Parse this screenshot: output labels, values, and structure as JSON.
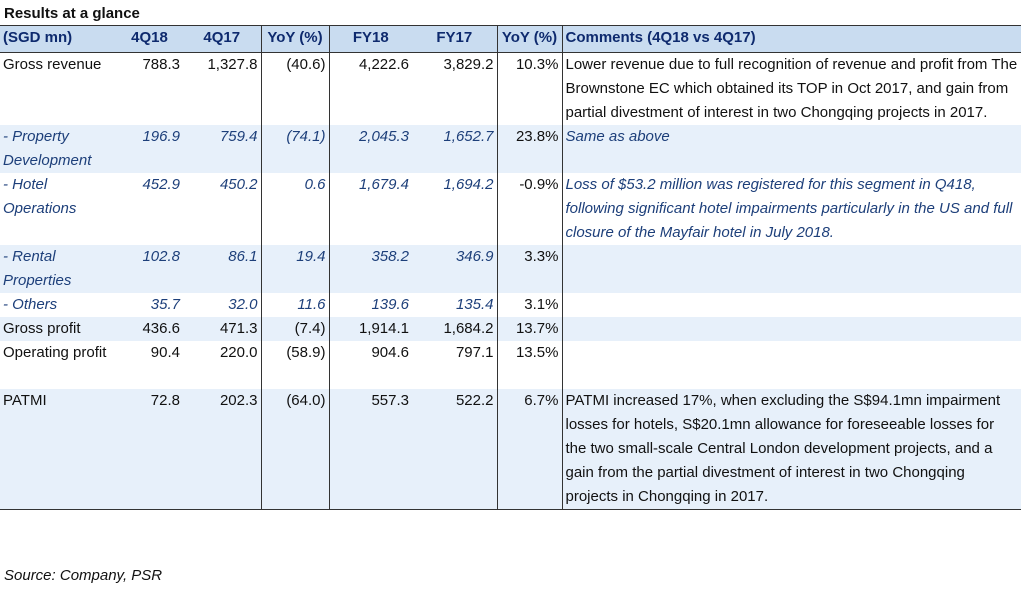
{
  "title": "Results at a glance",
  "header": [
    "(SGD mn)",
    "4Q18",
    "4Q17",
    "YoY (%)",
    "FY18",
    "FY17",
    "YoY (%)",
    "Comments (4Q18 vs 4Q17)"
  ],
  "rows": [
    {
      "label": "Gross revenue",
      "q418": "788.3",
      "q417": "1,327.8",
      "yoy1": "(40.6)",
      "fy18": "4,222.6",
      "fy17": "3,829.2",
      "yoy2": "10.3%",
      "comment": "Lower revenue due to full recognition of revenue and profit from The Brownstone EC which obtained its TOP in Oct 2017, and gain from partial divestment of interest in two Chongqing projects in 2017."
    },
    {
      "label": "- Property Development",
      "q418": "196.9",
      "q417": "759.4",
      "yoy1": "(74.1)",
      "fy18": "2,045.3",
      "fy17": "1,652.7",
      "yoy2": "23.8%",
      "comment": "Same as above"
    },
    {
      "label": "- Hotel Operations",
      "q418": "452.9",
      "q417": "450.2",
      "yoy1": "0.6",
      "fy18": "1,679.4",
      "fy17": "1,694.2",
      "yoy2": "-0.9%",
      "comment": "Loss of $53.2 million was registered for this segment in Q418, following significant hotel impairments particularly in the US and full closure of the Mayfair hotel in July 2018."
    },
    {
      "label": "- Rental Properties",
      "q418": "102.8",
      "q417": "86.1",
      "yoy1": "19.4",
      "fy18": "358.2",
      "fy17": "346.9",
      "yoy2": "3.3%",
      "comment": ""
    },
    {
      "label": "- Others",
      "q418": "35.7",
      "q417": "32.0",
      "yoy1": "11.6",
      "fy18": "139.6",
      "fy17": "135.4",
      "yoy2": "3.1%",
      "comment": ""
    },
    {
      "label": "Gross profit",
      "q418": "436.6",
      "q417": "471.3",
      "yoy1": "(7.4)",
      "fy18": "1,914.1",
      "fy17": "1,684.2",
      "yoy2": "13.7%",
      "comment": ""
    },
    {
      "label": "Operating profit",
      "q418": "90.4",
      "q417": "220.0",
      "yoy1": "(58.9)",
      "fy18": "904.6",
      "fy17": "797.1",
      "yoy2": "13.5%",
      "comment": ""
    },
    {
      "label": "PATMI",
      "q418": "72.8",
      "q417": "202.3",
      "yoy1": "(64.0)",
      "fy18": "557.3",
      "fy17": "522.2",
      "yoy2": "6.7%",
      "comment": "PATMI increased 17%, when excluding the S$94.1mn impairment losses for hotels, S$20.1mn allowance for foreseeable losses for the two small-scale Central London development projects, and a gain from the partial divestment of interest in two Chongqing projects in Chongqing in 2017."
    }
  ],
  "source": "Source: Company, PSR"
}
